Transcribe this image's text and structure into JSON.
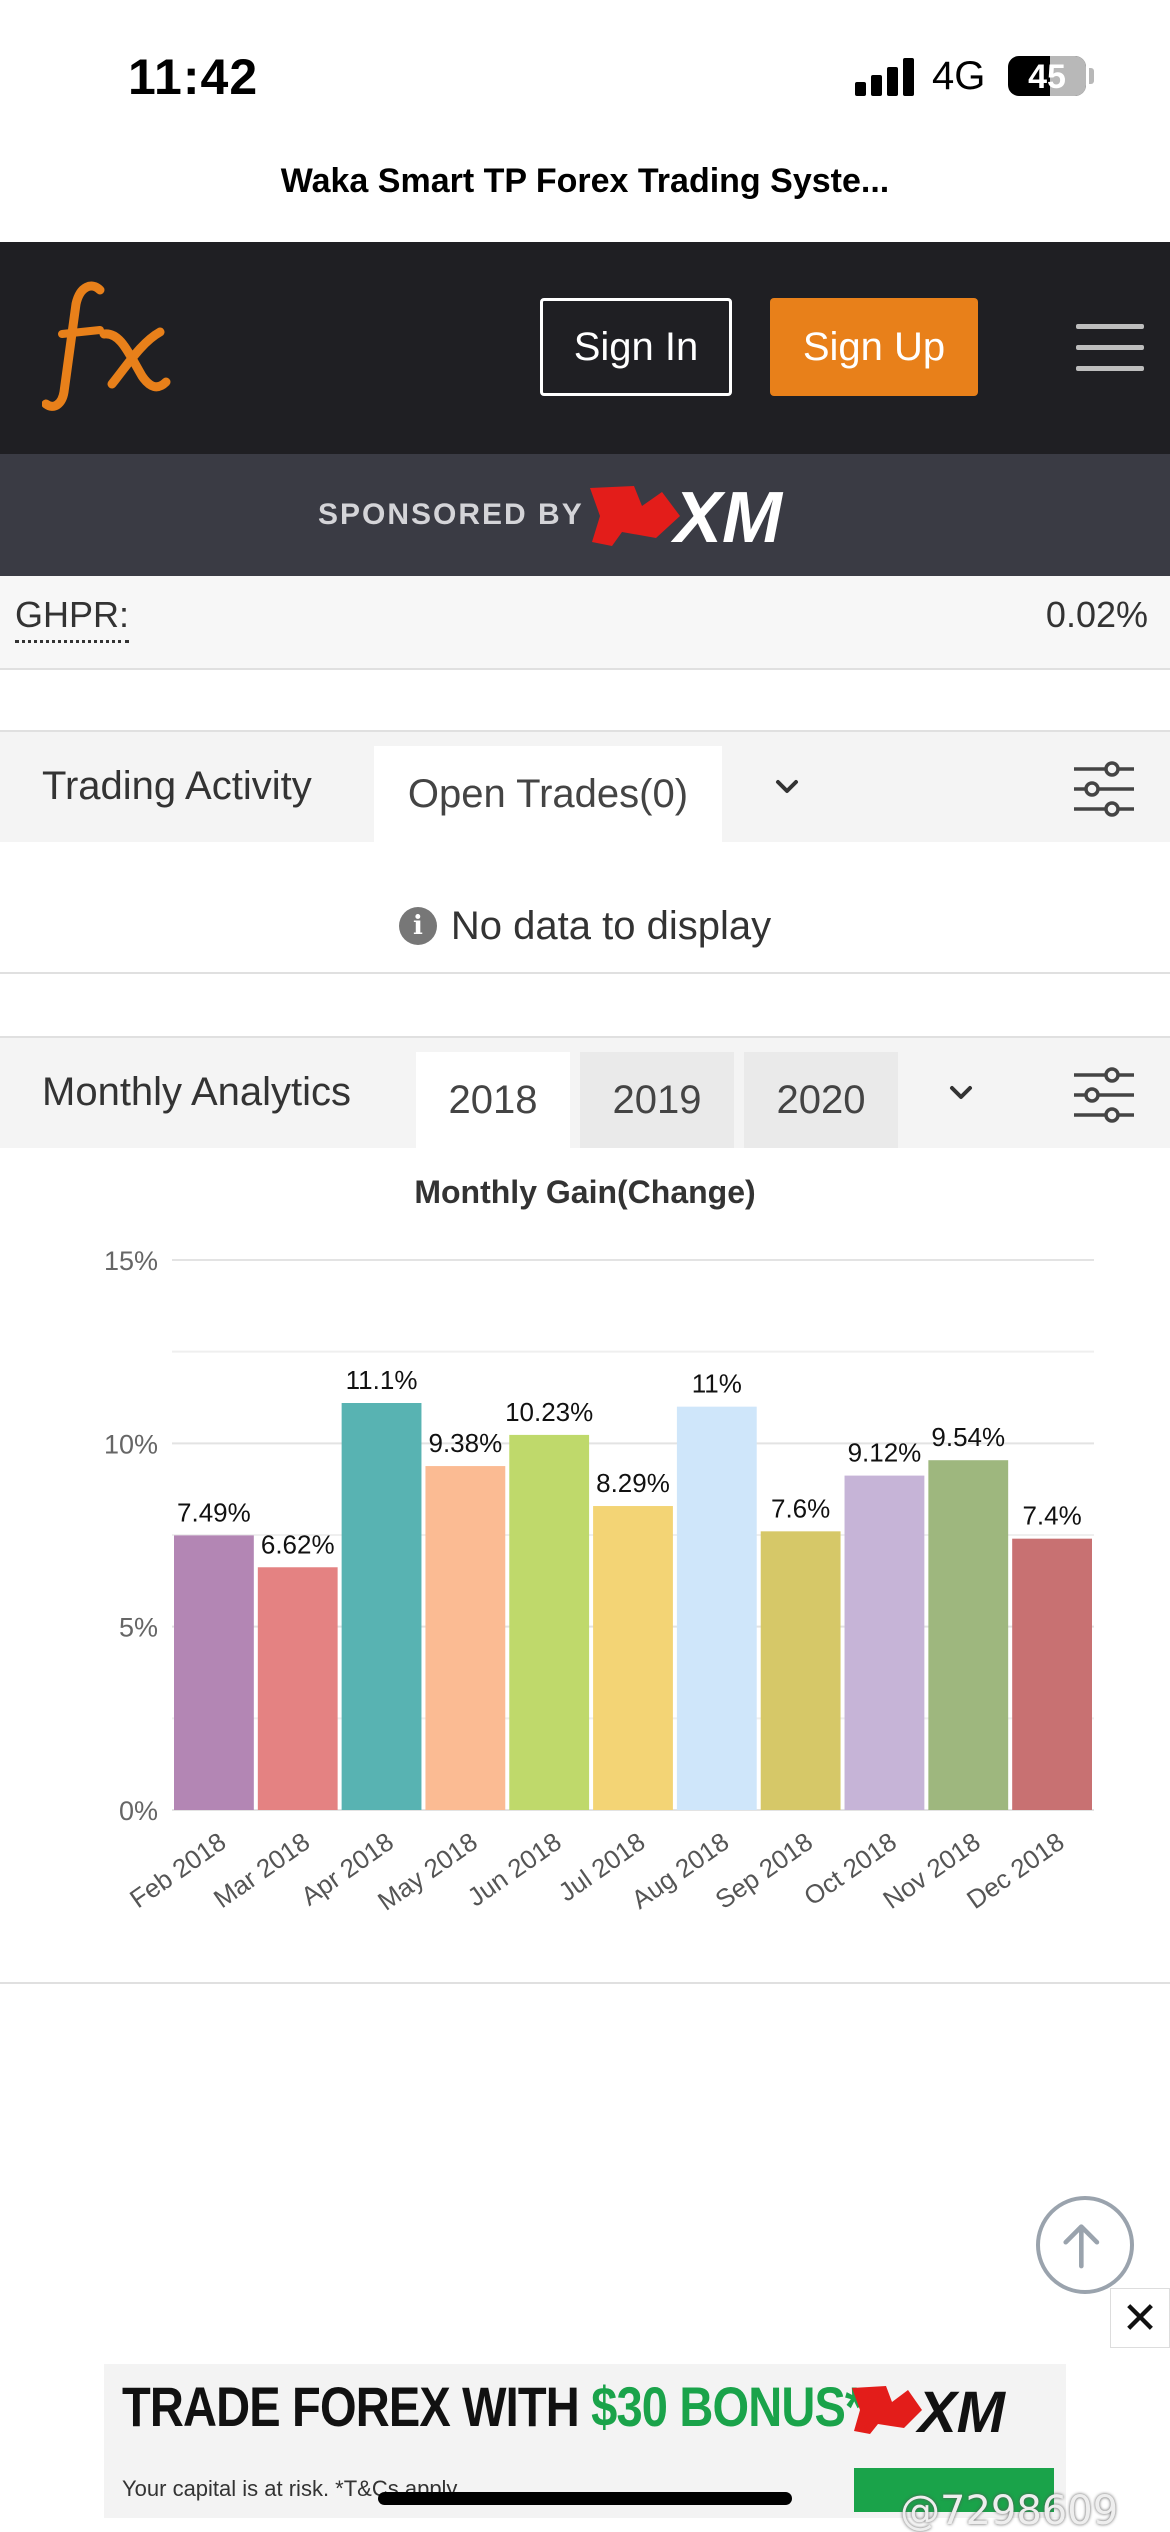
{
  "status_bar": {
    "time": "11:42",
    "network": "4G",
    "battery": "45"
  },
  "browser": {
    "page_title": "Waka Smart TP Forex Trading Syste..."
  },
  "header": {
    "logo_icon": "fx-logo",
    "sign_in_label": "Sign In",
    "sign_up_label": "Sign Up",
    "menu_icon": "hamburger-menu-icon",
    "accent_color": "#e8801a"
  },
  "sponsor": {
    "label": "SPONSORED BY",
    "brand": "XM"
  },
  "ghpr": {
    "label": "GHPR:",
    "value": "0.02%"
  },
  "trading_activity": {
    "title": "Trading Activity",
    "tab_label": "Open Trades(0)",
    "empty_message": "No data to display"
  },
  "monthly_analytics": {
    "title": "Monthly Analytics",
    "years": [
      "2018",
      "2019",
      "2020"
    ],
    "selected_year": "2018"
  },
  "chart_data": {
    "type": "bar",
    "title": "Monthly Gain(Change)",
    "categories": [
      "Feb 2018",
      "Mar 2018",
      "Apr 2018",
      "May 2018",
      "Jun 2018",
      "Jul 2018",
      "Aug 2018",
      "Sep 2018",
      "Oct 2018",
      "Nov 2018",
      "Dec 2018"
    ],
    "values": [
      7.49,
      6.62,
      11.1,
      9.38,
      10.23,
      8.29,
      11,
      7.6,
      9.12,
      9.54,
      7.4
    ],
    "value_labels": [
      "7.49%",
      "6.62%",
      "11.1%",
      "9.38%",
      "10.23%",
      "8.29%",
      "11%",
      "7.6%",
      "9.12%",
      "9.54%",
      "7.4%"
    ],
    "colors": [
      "#b386b4",
      "#e48282",
      "#58b3b2",
      "#fbbb93",
      "#bfd96b",
      "#f3d475",
      "#cfe6fa",
      "#d6c868",
      "#c6b4d7",
      "#9eb77e",
      "#c87172"
    ],
    "y_ticks": [
      "0%",
      "5%",
      "10%",
      "15%"
    ],
    "ylim": [
      0,
      15
    ],
    "grid": true
  },
  "ad": {
    "headline_part1": "TRADE FOREX WITH ",
    "headline_bonus": "$30 BONUS*",
    "disclaimer": "Your capital is at risk. *T&Cs apply",
    "brand": "XM",
    "close_label": "✕"
  },
  "watermark": "@7298609"
}
